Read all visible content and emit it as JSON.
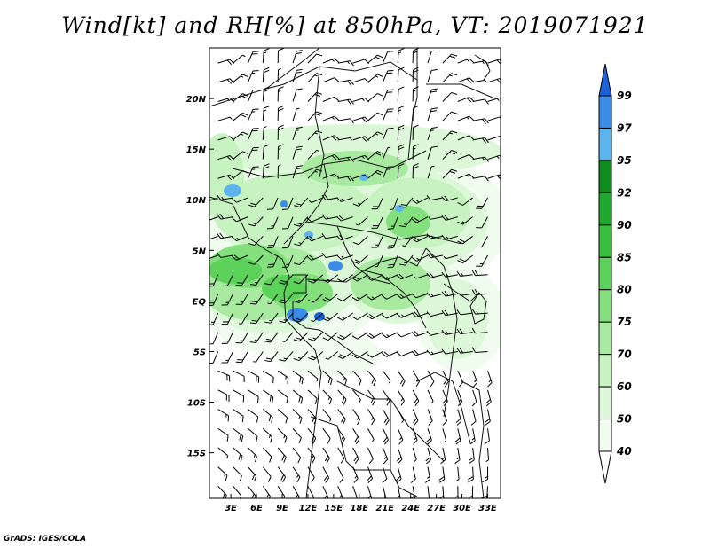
{
  "title": "Wind[kt] and RH[%] at 850hPa, VT: 2019071921",
  "credit": "GrADS: IGES/COLA",
  "map": {
    "lon_labels": [
      "3E",
      "6E",
      "9E",
      "12E",
      "15E",
      "18E",
      "21E",
      "24E",
      "27E",
      "30E",
      "33E"
    ],
    "lon_values": [
      3,
      6,
      9,
      12,
      15,
      18,
      21,
      24,
      27,
      30,
      33
    ],
    "lat_labels": [
      "20N",
      "15N",
      "10N",
      "5N",
      "EQ",
      "5S",
      "10S",
      "15S"
    ],
    "lat_values": [
      20,
      15,
      10,
      5,
      0,
      -5,
      -10,
      -15
    ],
    "lon_range": [
      0.5,
      34.5
    ],
    "lat_range": [
      -19.5,
      25
    ]
  },
  "colorbar": {
    "levels": [
      "99",
      "97",
      "95",
      "92",
      "90",
      "85",
      "80",
      "75",
      "70",
      "60",
      "50",
      "40"
    ],
    "colors": [
      "#1c62d6",
      "#3a8ce8",
      "#5cb4ee",
      "#0f8c1e",
      "#1fa82e",
      "#38bf3e",
      "#5cd25a",
      "#84e07c",
      "#a8eba0",
      "#c6f3c0",
      "#ddf8d8",
      "#f0fcee",
      "#ffffff"
    ]
  }
}
